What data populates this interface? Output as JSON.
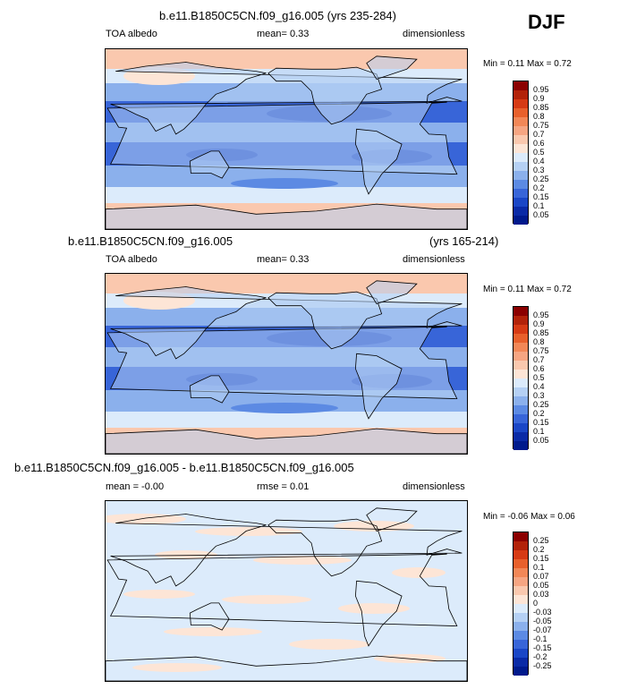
{
  "season": "DJF",
  "panels": [
    {
      "title": "b.e11.B1850C5CN.f09_g16.005 (yrs 235-284)",
      "left": "TOA albedo",
      "middle": "mean=   0.33",
      "right": "dimensionless",
      "minmax": "Min =   0.11 Max =   0.72",
      "colorbar": {
        "levels": [
          "0.95",
          "0.9",
          "0.85",
          "0.8",
          "0.75",
          "0.7",
          "0.6",
          "0.5",
          "0.4",
          "0.3",
          "0.25",
          "0.2",
          "0.15",
          "0.1",
          "0.05"
        ],
        "colors": [
          "#8b0000",
          "#b22209",
          "#d63a14",
          "#e8602c",
          "#f28757",
          "#f6a582",
          "#fac8ae",
          "#fde5d6",
          "#dcebfb",
          "#b5d0f4",
          "#8bb0ec",
          "#5c8ae3",
          "#3865d8",
          "#1a46c6",
          "#0a2aa6",
          "#001a8c"
        ]
      }
    },
    {
      "title_left": "b.e11.B1850C5CN.f09_g16.005",
      "title_right": "(yrs 165-214)",
      "left": "TOA albedo",
      "middle": "mean=   0.33",
      "right": "dimensionless",
      "minmax": "Min =   0.11 Max =   0.72",
      "colorbar": {
        "levels": [
          "0.95",
          "0.9",
          "0.85",
          "0.8",
          "0.75",
          "0.7",
          "0.6",
          "0.5",
          "0.4",
          "0.3",
          "0.25",
          "0.2",
          "0.15",
          "0.1",
          "0.05"
        ],
        "colors": [
          "#8b0000",
          "#b22209",
          "#d63a14",
          "#e8602c",
          "#f28757",
          "#f6a582",
          "#fac8ae",
          "#fde5d6",
          "#dcebfb",
          "#b5d0f4",
          "#8bb0ec",
          "#5c8ae3",
          "#3865d8",
          "#1a46c6",
          "#0a2aa6",
          "#001a8c"
        ]
      }
    },
    {
      "title": "b.e11.B1850C5CN.f09_g16.005 - b.e11.B1850C5CN.f09_g16.005",
      "left": "mean =  -0.00",
      "middle": "rmse =   0.01",
      "right": "dimensionless",
      "minmax": "Min =  -0.06 Max =   0.06",
      "colorbar": {
        "levels": [
          "0.25",
          "0.2",
          "0.15",
          "0.1",
          "0.07",
          "0.05",
          "0.03",
          "0",
          "-0.03",
          "-0.05",
          "-0.07",
          "-0.1",
          "-0.15",
          "-0.2",
          "-0.25"
        ],
        "colors": [
          "#8b0000",
          "#b22209",
          "#d63a14",
          "#e8602c",
          "#f28757",
          "#f6a582",
          "#fac8ae",
          "#fde5d6",
          "#dcebfb",
          "#b5d0f4",
          "#8bb0ec",
          "#5c8ae3",
          "#3865d8",
          "#1a46c6",
          "#0a2aa6",
          "#001a8c"
        ]
      }
    }
  ],
  "chart_data": [
    {
      "type": "heatmap",
      "title": "b.e11.B1850C5CN.f09_g16.005 (yrs 235-284)",
      "variable": "TOA albedo",
      "units": "dimensionless",
      "mean": 0.33,
      "min": 0.11,
      "max": 0.72,
      "contour_levels": [
        0.05,
        0.1,
        0.15,
        0.2,
        0.25,
        0.3,
        0.4,
        0.5,
        0.6,
        0.7,
        0.75,
        0.8,
        0.85,
        0.9,
        0.95
      ]
    },
    {
      "type": "heatmap",
      "title": "b.e11.B1850C5CN.f09_g16.005 (yrs 165-214)",
      "variable": "TOA albedo",
      "units": "dimensionless",
      "mean": 0.33,
      "min": 0.11,
      "max": 0.72,
      "contour_levels": [
        0.05,
        0.1,
        0.15,
        0.2,
        0.25,
        0.3,
        0.4,
        0.5,
        0.6,
        0.7,
        0.75,
        0.8,
        0.85,
        0.9,
        0.95
      ]
    },
    {
      "type": "heatmap",
      "title": "b.e11.B1850C5CN.f09_g16.005 - b.e11.B1850C5CN.f09_g16.005",
      "units": "dimensionless",
      "mean": -0.0,
      "rmse": 0.01,
      "min": -0.06,
      "max": 0.06,
      "contour_levels": [
        -0.25,
        -0.2,
        -0.15,
        -0.1,
        -0.07,
        -0.05,
        -0.03,
        0,
        0.03,
        0.05,
        0.07,
        0.1,
        0.15,
        0.2,
        0.25
      ]
    }
  ]
}
